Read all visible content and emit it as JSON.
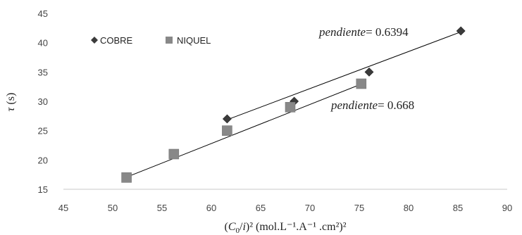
{
  "chart_data": {
    "type": "scatter",
    "title": "",
    "xlabel": {
      "prefix": "(",
      "var": "C",
      "sub": "0",
      "mid": "/",
      "var2": "i",
      "rest": ")² (mol.L⁻¹.A⁻¹ .cm²)²"
    },
    "ylabel": {
      "var": "τ",
      "rest": " (s)"
    },
    "xlim": [
      45,
      90
    ],
    "ylim": [
      15,
      45
    ],
    "xticks": [
      "45",
      "50",
      "55",
      "60",
      "65",
      "70",
      "75",
      "80",
      "85",
      "90"
    ],
    "yticks": [
      "15",
      "20",
      "25",
      "30",
      "35",
      "40",
      "45"
    ],
    "grid": false,
    "legend_position": "top-left",
    "series": [
      {
        "name": "COBRE",
        "marker": "diamond",
        "color": "#3b3b3b",
        "x": [
          61.6,
          68.4,
          76.0,
          85.3
        ],
        "y": [
          27.0,
          30.0,
          35.0,
          42.0
        ],
        "trendline": {
          "x": [
            61.5,
            85.4
          ],
          "y": [
            26.8,
            41.9
          ]
        }
      },
      {
        "name": "NIQUEL",
        "marker": "square",
        "color": "#888888",
        "x": [
          51.4,
          56.2,
          61.6,
          68.0,
          75.2
        ],
        "y": [
          17.0,
          21.0,
          25.0,
          29.0,
          33.0
        ],
        "trendline": {
          "x": [
            51.3,
            75.6
          ],
          "y": [
            17.0,
            33.2
          ]
        }
      }
    ],
    "annotations": [
      {
        "label": "pendiente",
        "value": "= 0.6394",
        "series": "COBRE"
      },
      {
        "label": "pendiente",
        "value": "= 0.668",
        "series": "NIQUEL"
      }
    ]
  }
}
